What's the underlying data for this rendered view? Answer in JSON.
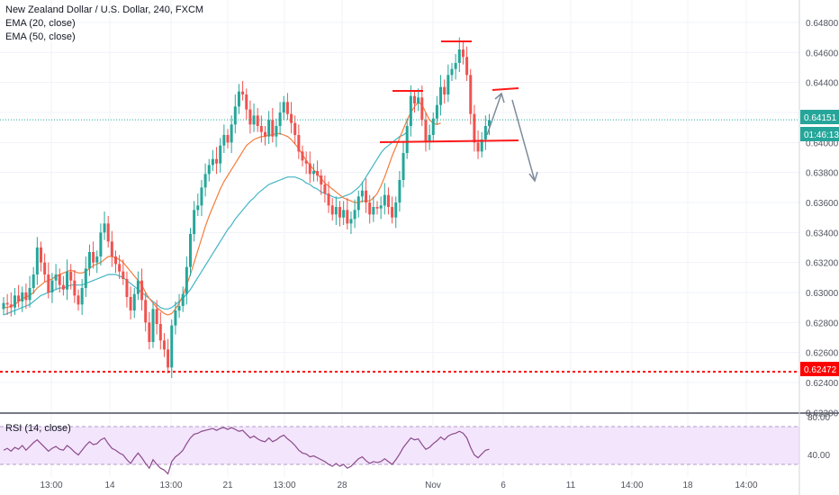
{
  "header": {
    "symbol_title": "New Zealand Dollar / U.S. Dollar, 240, FXCM",
    "indicators": [
      "EMA (20, close)",
      "EMA (50, close)"
    ],
    "rsi_title": "RSI (14, close)"
  },
  "price_axis": {
    "labels": [
      "0.64800",
      "0.64600",
      "0.64400",
      "0.64200",
      "0.64000",
      "0.63800",
      "0.63600",
      "0.63400",
      "0.63200",
      "0.63000",
      "0.62800",
      "0.62600",
      "0.62400",
      "0.62200"
    ],
    "min": 0.622,
    "max": 0.649
  },
  "rsi_axis": {
    "labels": [
      "80.00",
      "40.00"
    ]
  },
  "time_axis": {
    "labels": [
      "13:00",
      "14",
      "13:00",
      "21",
      "13:00",
      "28",
      "Nov",
      "6",
      "11",
      "14:00",
      "18",
      "14:00"
    ]
  },
  "badges": {
    "current_price": "0.64151",
    "countdown": "01:46:13",
    "support_level": "0.62472"
  },
  "colors": {
    "bull": "#26a69a",
    "bear": "#ef5350",
    "ema20": "#f57c3b",
    "ema50": "#45b5c4",
    "annotation": "#ff1a1a",
    "arrow": "#7f8c9a",
    "rsi": "#8a4a8a",
    "rsi_band": "#f3e5fc",
    "price_line": "#26a69a",
    "support_line": "#ff0000"
  },
  "chart_data": {
    "type": "candlestick",
    "title": "New Zealand Dollar / U.S. Dollar, 240, FXCM",
    "closes": [
      0.6293,
      0.6292,
      0.629,
      0.6298,
      0.6294,
      0.63,
      0.6295,
      0.6303,
      0.6312,
      0.633,
      0.632,
      0.6312,
      0.63,
      0.6308,
      0.6312,
      0.6305,
      0.6302,
      0.6314,
      0.6308,
      0.6298,
      0.6292,
      0.6303,
      0.6316,
      0.6327,
      0.632,
      0.6324,
      0.634,
      0.6346,
      0.6334,
      0.6324,
      0.6319,
      0.6314,
      0.6309,
      0.6297,
      0.6288,
      0.6299,
      0.6308,
      0.6295,
      0.628,
      0.6267,
      0.6289,
      0.6279,
      0.6268,
      0.6262,
      0.625,
      0.6278,
      0.6288,
      0.6291,
      0.6299,
      0.6317,
      0.6339,
      0.6355,
      0.6358,
      0.637,
      0.6379,
      0.6385,
      0.6389,
      0.6386,
      0.6398,
      0.6405,
      0.64,
      0.6412,
      0.6424,
      0.6434,
      0.6432,
      0.6422,
      0.6412,
      0.6418,
      0.6411,
      0.6407,
      0.6404,
      0.6415,
      0.6404,
      0.6411,
      0.642,
      0.6427,
      0.6419,
      0.6413,
      0.6405,
      0.6394,
      0.6388,
      0.6386,
      0.6379,
      0.6381,
      0.6378,
      0.6372,
      0.6366,
      0.6358,
      0.6352,
      0.6357,
      0.635,
      0.6355,
      0.6346,
      0.6349,
      0.6355,
      0.6364,
      0.6368,
      0.636,
      0.6352,
      0.6357,
      0.6356,
      0.6358,
      0.6365,
      0.6357,
      0.635,
      0.636,
      0.6375,
      0.6393,
      0.6411,
      0.6431,
      0.6426,
      0.643,
      0.6415,
      0.6401,
      0.6405,
      0.6416,
      0.6425,
      0.6437,
      0.6432,
      0.6445,
      0.6449,
      0.6453,
      0.6462,
      0.6457,
      0.6445,
      0.6419,
      0.64,
      0.6394,
      0.6402,
      0.6411,
      0.6415
    ],
    "ema20": [
      0.629,
      0.629,
      0.6291,
      0.6292,
      0.6294,
      0.6296,
      0.6297,
      0.6298,
      0.63,
      0.6303,
      0.6305,
      0.6307,
      0.6308,
      0.6309,
      0.6311,
      0.6312,
      0.6313,
      0.6314,
      0.6315,
      0.6314,
      0.6313,
      0.6313,
      0.6314,
      0.6316,
      0.6318,
      0.6319,
      0.632,
      0.6322,
      0.6324,
      0.6324,
      0.6323,
      0.6322,
      0.632,
      0.6317,
      0.6314,
      0.6311,
      0.6308,
      0.6305,
      0.63,
      0.6296,
      0.6293,
      0.629,
      0.6288,
      0.6286,
      0.6285,
      0.6286,
      0.6289,
      0.6293,
      0.6298,
      0.6305,
      0.6312,
      0.632,
      0.6328,
      0.6336,
      0.6344,
      0.6351,
      0.6357,
      0.6363,
      0.6369,
      0.6374,
      0.6378,
      0.6382,
      0.6386,
      0.639,
      0.6394,
      0.6398,
      0.64,
      0.6402,
      0.6403,
      0.6404,
      0.6404,
      0.6405,
      0.6405,
      0.6406,
      0.6406,
      0.6405,
      0.6404,
      0.6402,
      0.6399,
      0.6396,
      0.6392,
      0.6388,
      0.6385,
      0.6382,
      0.6379,
      0.6376,
      0.6373,
      0.6371,
      0.6369,
      0.6367,
      0.6365,
      0.6363,
      0.6362,
      0.6361,
      0.636,
      0.636,
      0.6361,
      0.6361,
      0.6361,
      0.6363,
      0.6366,
      0.6371,
      0.6377,
      0.6384,
      0.6391,
      0.6397,
      0.6403,
      0.6409,
      0.6415,
      0.642,
      0.6424,
      0.6427,
      0.6425,
      0.642,
      0.6415,
      0.6413,
      0.6412,
      0.6413
    ],
    "ema50": [
      0.6285,
      0.6286,
      0.6287,
      0.6288,
      0.6289,
      0.629,
      0.6291,
      0.6292,
      0.6294,
      0.6296,
      0.6298,
      0.6299,
      0.63,
      0.6301,
      0.6302,
      0.6303,
      0.6303,
      0.6304,
      0.6305,
      0.6305,
      0.6305,
      0.6305,
      0.6306,
      0.6307,
      0.6308,
      0.6309,
      0.631,
      0.6311,
      0.6312,
      0.6312,
      0.6312,
      0.6311,
      0.631,
      0.6308,
      0.6306,
      0.6304,
      0.6302,
      0.63,
      0.6298,
      0.6296,
      0.6294,
      0.6292,
      0.629,
      0.6289,
      0.6289,
      0.629,
      0.6292,
      0.6294,
      0.6296,
      0.6299,
      0.6302,
      0.6306,
      0.631,
      0.6314,
      0.6318,
      0.6322,
      0.6326,
      0.633,
      0.6334,
      0.6338,
      0.6342,
      0.6345,
      0.6349,
      0.6352,
      0.6355,
      0.6358,
      0.6361,
      0.6363,
      0.6366,
      0.6368,
      0.637,
      0.6372,
      0.6373,
      0.6374,
      0.6375,
      0.6376,
      0.6377,
      0.6377,
      0.6377,
      0.6376,
      0.6375,
      0.6373,
      0.6372,
      0.637,
      0.6369,
      0.6367,
      0.6366,
      0.6365,
      0.6364,
      0.6363,
      0.6363,
      0.6364,
      0.6365,
      0.6366,
      0.6368,
      0.637,
      0.6373,
      0.6377,
      0.6381,
      0.6385,
      0.6389,
      0.6393,
      0.6396,
      0.6398,
      0.64,
      0.6402,
      0.6404,
      0.6405,
      0.6407
    ],
    "rsi": [
      55,
      57,
      54,
      58,
      56,
      60,
      55,
      59,
      63,
      66,
      62,
      58,
      54,
      57,
      59,
      56,
      55,
      60,
      57,
      53,
      50,
      55,
      60,
      64,
      61,
      62,
      66,
      68,
      62,
      57,
      55,
      52,
      50,
      45,
      41,
      47,
      52,
      47,
      41,
      36,
      45,
      40,
      36,
      34,
      30,
      43,
      48,
      51,
      55,
      62,
      68,
      72,
      73,
      75,
      76,
      77,
      78,
      76,
      78,
      79,
      77,
      79,
      77,
      75,
      76,
      72,
      68,
      70,
      67,
      65,
      64,
      68,
      64,
      66,
      69,
      71,
      67,
      64,
      60,
      55,
      52,
      51,
      48,
      49,
      47,
      45,
      43,
      40,
      38,
      41,
      38,
      40,
      36,
      38,
      42,
      46,
      48,
      44,
      41,
      43,
      42,
      43,
      46,
      43,
      40,
      45,
      51,
      58,
      63,
      68,
      66,
      67,
      61,
      56,
      58,
      62,
      65,
      69,
      66,
      70,
      72,
      73,
      75,
      73,
      68,
      58,
      50,
      47,
      51,
      55,
      56
    ],
    "ylim": [
      0.622,
      0.649
    ],
    "horizontal_lines": {
      "current_price": 0.64151,
      "support": 0.62472
    }
  }
}
